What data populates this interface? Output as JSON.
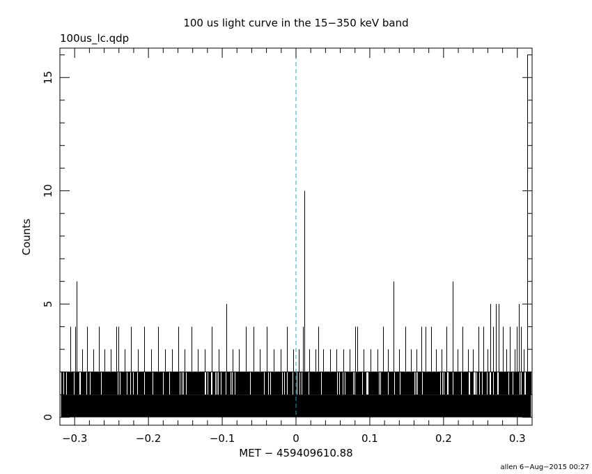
{
  "header": {
    "title": "100 us light curve in the 15−350 keV band",
    "filename": "100us_lc.qdp"
  },
  "footer": {
    "stamp": "allen  6−Aug−2015 00:27"
  },
  "chart_data": {
    "type": "bar",
    "title": "100 us light curve in the 15−350 keV band",
    "xlabel": "MET − 459409610.88",
    "ylabel": "Counts",
    "xlim": [
      -0.32,
      0.32
    ],
    "ylim": [
      -0.35,
      16.3
    ],
    "x_ticks": [
      {
        "value": -0.3,
        "label": "−0.3"
      },
      {
        "value": -0.2,
        "label": "−0.2"
      },
      {
        "value": -0.1,
        "label": "−0.1"
      },
      {
        "value": 0,
        "label": "0"
      },
      {
        "value": 0.1,
        "label": "0.1"
      },
      {
        "value": 0.2,
        "label": "0.2"
      },
      {
        "value": 0.3,
        "label": "0.3"
      }
    ],
    "y_ticks": [
      {
        "value": 0,
        "label": "0"
      },
      {
        "value": 5,
        "label": "5"
      },
      {
        "value": 10,
        "label": "10"
      },
      {
        "value": 15,
        "label": "15"
      }
    ],
    "trigger_line": {
      "x": 0,
      "style": "dashed",
      "color": "#1aa3c9"
    },
    "baseline_max": 1,
    "level2_fraction": 0.86,
    "bin_width": 0.0001,
    "spikes": [
      {
        "x": -0.306,
        "y": 4
      },
      {
        "x": -0.299,
        "y": 4
      },
      {
        "x": -0.297,
        "y": 6
      },
      {
        "x": -0.29,
        "y": 3
      },
      {
        "x": -0.283,
        "y": 4
      },
      {
        "x": -0.275,
        "y": 3
      },
      {
        "x": -0.267,
        "y": 4
      },
      {
        "x": -0.26,
        "y": 3
      },
      {
        "x": -0.251,
        "y": 3
      },
      {
        "x": -0.244,
        "y": 4
      },
      {
        "x": -0.241,
        "y": 4
      },
      {
        "x": -0.232,
        "y": 3
      },
      {
        "x": -0.224,
        "y": 4
      },
      {
        "x": -0.214,
        "y": 3
      },
      {
        "x": -0.206,
        "y": 4
      },
      {
        "x": -0.196,
        "y": 3
      },
      {
        "x": -0.187,
        "y": 4
      },
      {
        "x": -0.177,
        "y": 3
      },
      {
        "x": -0.168,
        "y": 3
      },
      {
        "x": -0.16,
        "y": 4
      },
      {
        "x": -0.151,
        "y": 3
      },
      {
        "x": -0.142,
        "y": 4
      },
      {
        "x": -0.133,
        "y": 3
      },
      {
        "x": -0.124,
        "y": 3
      },
      {
        "x": -0.114,
        "y": 4
      },
      {
        "x": -0.105,
        "y": 3
      },
      {
        "x": -0.094,
        "y": 5
      },
      {
        "x": -0.086,
        "y": 3
      },
      {
        "x": -0.077,
        "y": 3
      },
      {
        "x": -0.068,
        "y": 4
      },
      {
        "x": -0.058,
        "y": 4
      },
      {
        "x": -0.049,
        "y": 3
      },
      {
        "x": -0.04,
        "y": 4
      },
      {
        "x": -0.03,
        "y": 3
      },
      {
        "x": -0.021,
        "y": 3
      },
      {
        "x": -0.012,
        "y": 4
      },
      {
        "x": -0.004,
        "y": 3
      },
      {
        "x": 0.004,
        "y": 3
      },
      {
        "x": 0.009,
        "y": 4
      },
      {
        "x": 0.011,
        "y": 10
      },
      {
        "x": 0.018,
        "y": 3
      },
      {
        "x": 0.026,
        "y": 3
      },
      {
        "x": 0.03,
        "y": 4
      },
      {
        "x": 0.037,
        "y": 3
      },
      {
        "x": 0.046,
        "y": 3
      },
      {
        "x": 0.055,
        "y": 3
      },
      {
        "x": 0.064,
        "y": 3
      },
      {
        "x": 0.073,
        "y": 3
      },
      {
        "x": 0.08,
        "y": 4
      },
      {
        "x": 0.083,
        "y": 4
      },
      {
        "x": 0.092,
        "y": 3
      },
      {
        "x": 0.101,
        "y": 3
      },
      {
        "x": 0.11,
        "y": 3
      },
      {
        "x": 0.118,
        "y": 4
      },
      {
        "x": 0.125,
        "y": 3
      },
      {
        "x": 0.132,
        "y": 6
      },
      {
        "x": 0.14,
        "y": 3
      },
      {
        "x": 0.148,
        "y": 4
      },
      {
        "x": 0.156,
        "y": 3
      },
      {
        "x": 0.163,
        "y": 3
      },
      {
        "x": 0.17,
        "y": 4
      },
      {
        "x": 0.176,
        "y": 4
      },
      {
        "x": 0.183,
        "y": 4
      },
      {
        "x": 0.19,
        "y": 3
      },
      {
        "x": 0.197,
        "y": 3
      },
      {
        "x": 0.204,
        "y": 4
      },
      {
        "x": 0.212,
        "y": 6
      },
      {
        "x": 0.219,
        "y": 3
      },
      {
        "x": 0.226,
        "y": 4
      },
      {
        "x": 0.233,
        "y": 3
      },
      {
        "x": 0.24,
        "y": 3
      },
      {
        "x": 0.247,
        "y": 4
      },
      {
        "x": 0.254,
        "y": 4
      },
      {
        "x": 0.26,
        "y": 3
      },
      {
        "x": 0.263,
        "y": 5
      },
      {
        "x": 0.267,
        "y": 4
      },
      {
        "x": 0.271,
        "y": 5
      },
      {
        "x": 0.275,
        "y": 5
      },
      {
        "x": 0.28,
        "y": 4
      },
      {
        "x": 0.285,
        "y": 3
      },
      {
        "x": 0.29,
        "y": 4
      },
      {
        "x": 0.296,
        "y": 3
      },
      {
        "x": 0.299,
        "y": 4
      },
      {
        "x": 0.302,
        "y": 5
      },
      {
        "x": 0.305,
        "y": 4
      },
      {
        "x": 0.309,
        "y": 3
      },
      {
        "x": 0.313,
        "y": 16
      }
    ]
  }
}
